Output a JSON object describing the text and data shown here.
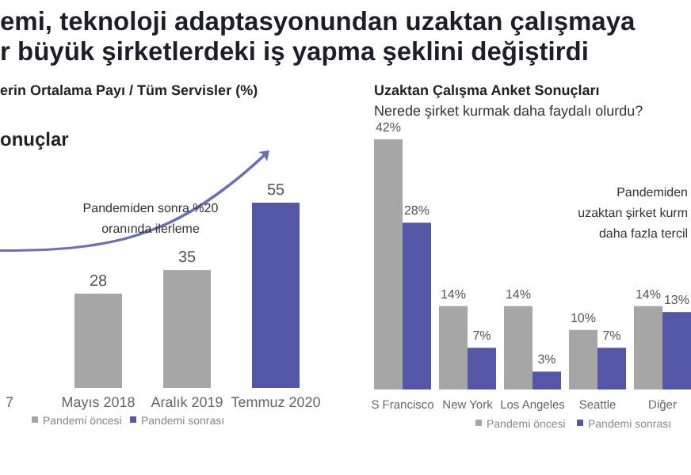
{
  "chart_data": [
    {
      "type": "other",
      "title": "emi, teknoloji adaptasyonundan uzaktan çalışmaya",
      "subtitle": "r büyük şirketlerdeki iş yapma şeklini değiştirdi"
    },
    {
      "type": "bar",
      "title": "erin Ortalama Payı / Tüm Servisler (%)",
      "subtitle": "onuçlar",
      "categories": [
        "7",
        "Mayıs 2018",
        "Aralık 2019",
        "Temmuz 2020"
      ],
      "series": [
        {
          "name": "Pandemi öncesi",
          "color": "#a6a6a6",
          "values": [
            null,
            28,
            35,
            null
          ]
        },
        {
          "name": "Pandemi sonrası",
          "color": "#5457a6",
          "values": [
            null,
            null,
            null,
            55
          ]
        }
      ],
      "data_labels": true,
      "legend": "bottom",
      "annotations": [
        "Pandemiden sonra %20\noranında ilerleme"
      ]
    },
    {
      "type": "bar",
      "title": "Uzaktan Çalışma Anket Sonuçları",
      "subtitle": "Nerede şirket kurmak daha faydalı olurdu?",
      "categories": [
        "S Francisco",
        "New York",
        "Los Angeles",
        "Seattle",
        "Diğer"
      ],
      "series": [
        {
          "name": "Pandemi öncesi",
          "color": "#a6a6a6",
          "values": [
            42,
            14,
            14,
            10,
            14
          ],
          "value_labels": [
            "42%",
            "14%",
            "14%",
            "10%",
            "14%"
          ]
        },
        {
          "name": "Pandemi sonrası",
          "color": "#5457a6",
          "values": [
            28,
            7,
            3,
            7,
            13
          ],
          "value_labels": [
            "28%",
            "7%",
            "3%",
            "7%",
            "13%"
          ]
        }
      ],
      "legend": "bottom",
      "annotations": [
        "Pandemiden\nuzaktan şirket kurm\ndaha fazla tercil"
      ]
    }
  ]
}
